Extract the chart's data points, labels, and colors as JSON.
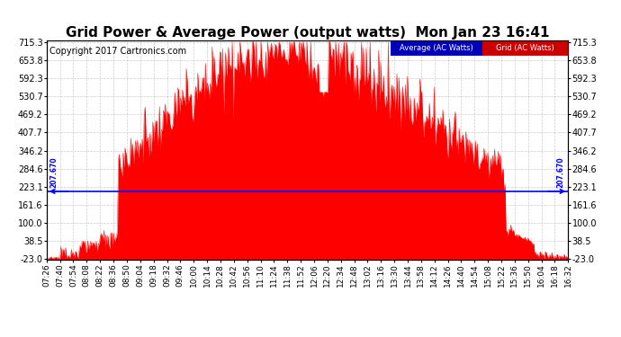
{
  "title": "Grid Power & Average Power (output watts)  Mon Jan 23 16:41",
  "copyright": "Copyright 2017 Cartronics.com",
  "average_value": 207.67,
  "ymin": -23.0,
  "ymax": 715.3,
  "yticks": [
    -23.0,
    38.5,
    100.0,
    161.6,
    223.1,
    284.6,
    346.2,
    407.7,
    469.2,
    530.7,
    592.3,
    653.8,
    715.3
  ],
  "avg_color": "#0000ff",
  "grid_color": "#ff0000",
  "bg_color": "#ffffff",
  "plot_bg_color": "#ffffff",
  "legend_avg_bg": "#0000bb",
  "legend_grid_bg": "#cc0000",
  "xtick_labels": [
    "07:26",
    "07:40",
    "07:54",
    "08:08",
    "08:22",
    "08:36",
    "08:50",
    "09:04",
    "09:18",
    "09:32",
    "09:46",
    "10:00",
    "10:14",
    "10:28",
    "10:42",
    "10:56",
    "11:10",
    "11:24",
    "11:38",
    "11:52",
    "12:06",
    "12:20",
    "12:34",
    "12:48",
    "13:02",
    "13:16",
    "13:30",
    "13:44",
    "13:58",
    "14:12",
    "14:26",
    "14:40",
    "14:54",
    "15:08",
    "15:22",
    "15:36",
    "15:50",
    "16:04",
    "16:18",
    "16:32"
  ],
  "title_fontsize": 11,
  "axis_fontsize": 7,
  "copyright_fontsize": 7
}
